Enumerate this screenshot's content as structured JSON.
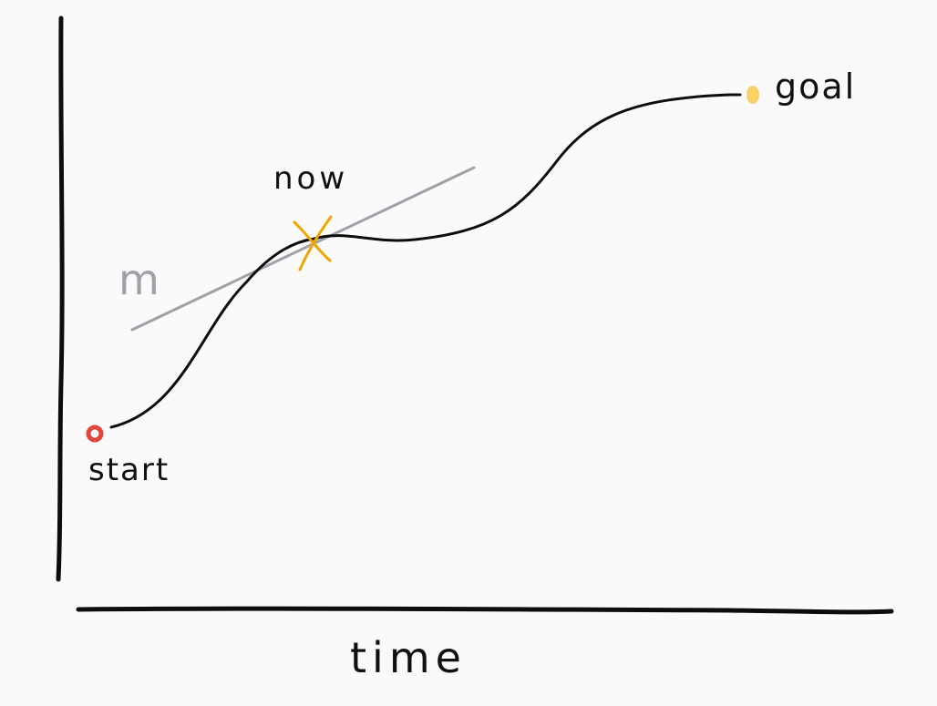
{
  "labels": {
    "x_axis": "time",
    "start": "start",
    "now": "now",
    "goal": "goal",
    "slope": "m"
  },
  "colors": {
    "background": "#fafafa",
    "ink": "#0d0d0d",
    "start_marker": "#e0483f",
    "now_marker": "#f0a500",
    "goal_marker": "#f8d36a",
    "tangent_line": "#9ea2a8"
  }
}
